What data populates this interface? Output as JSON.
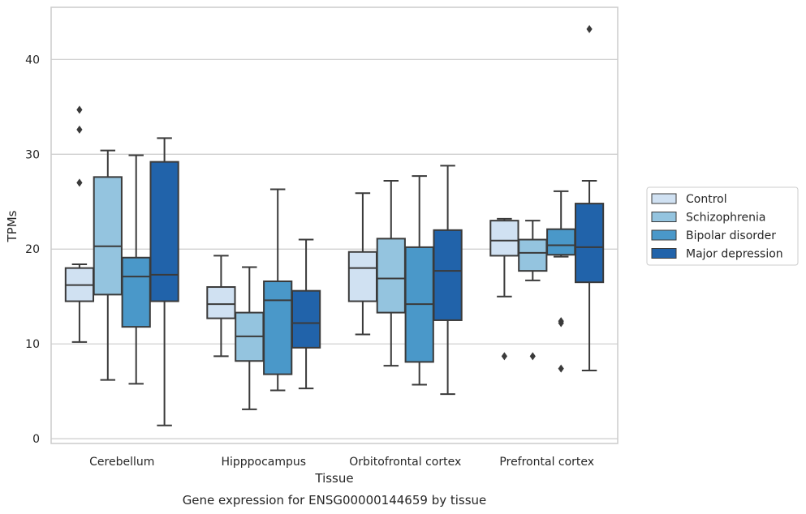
{
  "chart_data": {
    "type": "box",
    "xlabel": "Tissue",
    "ylabel": "TPMs",
    "caption": "Gene expression for ENSG00000144659 by tissue",
    "ylim": [
      -0.5,
      45.5
    ],
    "yticks": [
      0,
      10,
      20,
      30,
      40
    ],
    "grid": "horizontal",
    "legend_position": "right",
    "categories": [
      "Cerebellum",
      "Hipppocampus",
      "Orbitofrontal cortex",
      "Prefrontal cortex"
    ],
    "series": [
      {
        "name": "Control",
        "color": "#d0e1f2",
        "boxes": [
          {
            "whislo": 10.2,
            "q1": 14.5,
            "med": 16.2,
            "q3": 18.0,
            "whishi": 18.4,
            "fliers": [
              27.0,
              32.6,
              34.7
            ]
          },
          {
            "whislo": 8.7,
            "q1": 12.7,
            "med": 14.2,
            "q3": 16.0,
            "whishi": 19.3,
            "fliers": []
          },
          {
            "whislo": 11.0,
            "q1": 14.5,
            "med": 18.0,
            "q3": 19.7,
            "whishi": 25.9,
            "fliers": []
          },
          {
            "whislo": 15.0,
            "q1": 19.3,
            "med": 20.9,
            "q3": 23.0,
            "whishi": 23.2,
            "fliers": [
              8.7
            ]
          }
        ]
      },
      {
        "name": "Schizophrenia",
        "color": "#94c4df",
        "boxes": [
          {
            "whislo": 6.2,
            "q1": 15.2,
            "med": 20.3,
            "q3": 27.6,
            "whishi": 30.4,
            "fliers": []
          },
          {
            "whislo": 3.1,
            "q1": 8.2,
            "med": 10.8,
            "q3": 13.3,
            "whishi": 18.1,
            "fliers": []
          },
          {
            "whislo": 7.7,
            "q1": 13.3,
            "med": 16.9,
            "q3": 21.1,
            "whishi": 27.2,
            "fliers": []
          },
          {
            "whislo": 16.7,
            "q1": 17.7,
            "med": 19.6,
            "q3": 21.0,
            "whishi": 23.0,
            "fliers": [
              8.7
            ]
          }
        ]
      },
      {
        "name": "Bipolar disorder",
        "color": "#4a98c9",
        "boxes": [
          {
            "whislo": 5.8,
            "q1": 11.8,
            "med": 17.1,
            "q3": 19.1,
            "whishi": 29.9,
            "fliers": []
          },
          {
            "whislo": 5.1,
            "q1": 6.8,
            "med": 14.6,
            "q3": 16.6,
            "whishi": 26.3,
            "fliers": []
          },
          {
            "whislo": 5.7,
            "q1": 8.1,
            "med": 14.2,
            "q3": 20.2,
            "whishi": 27.7,
            "fliers": []
          },
          {
            "whislo": 19.2,
            "q1": 19.4,
            "med": 20.4,
            "q3": 22.1,
            "whishi": 26.1,
            "fliers": [
              7.4,
              12.2,
              12.4
            ]
          }
        ]
      },
      {
        "name": "Major depression",
        "color": "#2163aa",
        "boxes": [
          {
            "whislo": 1.4,
            "q1": 14.5,
            "med": 17.3,
            "q3": 29.2,
            "whishi": 31.7,
            "fliers": []
          },
          {
            "whislo": 5.3,
            "q1": 9.6,
            "med": 12.2,
            "q3": 15.6,
            "whishi": 21.0,
            "fliers": []
          },
          {
            "whislo": 4.7,
            "q1": 12.5,
            "med": 17.7,
            "q3": 22.0,
            "whishi": 28.8,
            "fliers": []
          },
          {
            "whislo": 7.2,
            "q1": 16.5,
            "med": 20.2,
            "q3": 24.8,
            "whishi": 27.2,
            "fliers": [
              43.2
            ]
          }
        ]
      }
    ]
  }
}
